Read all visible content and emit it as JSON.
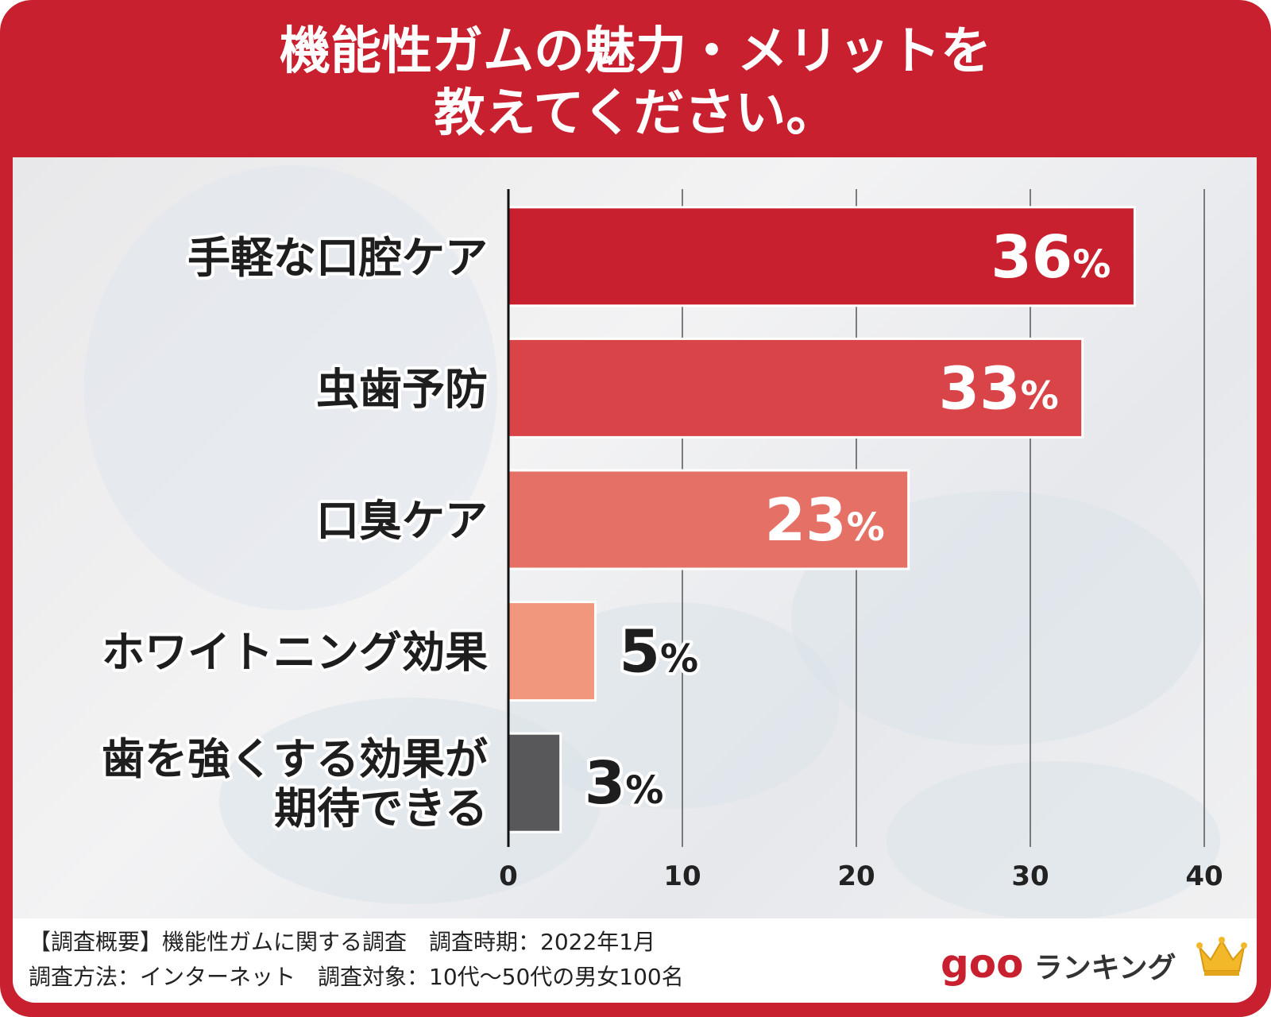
{
  "title": {
    "line1": "機能性ガムの魅力・メリットを",
    "line2": "教えてください。"
  },
  "chart_data": {
    "type": "bar",
    "orientation": "horizontal",
    "categories": [
      [
        "手軽な口腔ケア"
      ],
      [
        "虫歯予防"
      ],
      [
        "口臭ケア"
      ],
      [
        "ホワイトニング効果"
      ],
      [
        "歯を強くする効果が",
        "期待できる"
      ]
    ],
    "values": [
      36,
      33,
      23,
      5,
      3
    ],
    "value_labels": [
      "36",
      "33",
      "23",
      "5",
      "3"
    ],
    "unit": "%",
    "xticks": [
      "0",
      "10",
      "20",
      "30",
      "40"
    ],
    "xlim": [
      0,
      40
    ],
    "grid": true,
    "colors": [
      "#c8202e",
      "#d94449",
      "#e57065",
      "#f0977d",
      "#58585a"
    ]
  },
  "footer": {
    "line1": "【調査概要】機能性ガムに関する調査　調査時期：2022年1月",
    "line2": "調査方法：インターネット　調査対象：10代〜50代の男女100名",
    "logo_goo": "goo",
    "logo_ranking": "ランキング",
    "crown_icon": "crown-icon"
  }
}
